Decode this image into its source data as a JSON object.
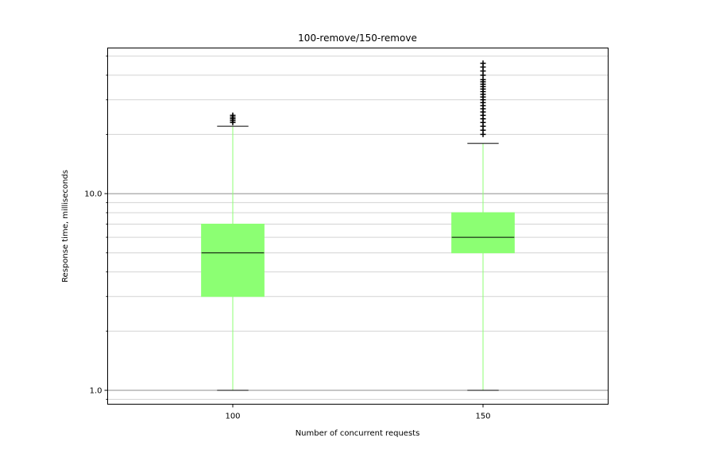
{
  "chart_data": {
    "type": "box",
    "title": "100-remove/150-remove",
    "xlabel": "Number of concurrent requests",
    "ylabel": "Response time, milliseconds",
    "y_scale": "log",
    "ylim": [
      0.85,
      55
    ],
    "y_tick_labels": [
      "1.0",
      "10.0"
    ],
    "y_ticks": [
      1.0,
      10.0
    ],
    "grid": "horizontal (major and minor)",
    "colors": {
      "box_fill": "#8cff73",
      "whisker": "#8cff73",
      "median": "#000000",
      "cap": "#000000",
      "flier": "#000000",
      "grid_major": "#8c8c8c",
      "grid_minor": "#d3d3d3"
    },
    "categories": [
      "100",
      "150"
    ],
    "boxes": [
      {
        "label": "100",
        "whislo": 1.0,
        "q1": 3.0,
        "med": 5.0,
        "q3": 7.0,
        "whishi": 22.0,
        "fliers": [
          23.0,
          23.5,
          24.0,
          24.5,
          25.0
        ]
      },
      {
        "label": "150",
        "whislo": 1.0,
        "q1": 5.0,
        "med": 6.0,
        "q3": 8.0,
        "whishi": 18.0,
        "fliers": [
          20.0,
          21.0,
          22.0,
          23.0,
          24.0,
          25.0,
          26.0,
          27.0,
          28.0,
          29.0,
          30.0,
          31.0,
          32.0,
          33.0,
          34.0,
          35.0,
          36.0,
          37.0,
          38.0,
          40.0,
          42.0,
          44.0,
          46.0
        ]
      }
    ]
  }
}
